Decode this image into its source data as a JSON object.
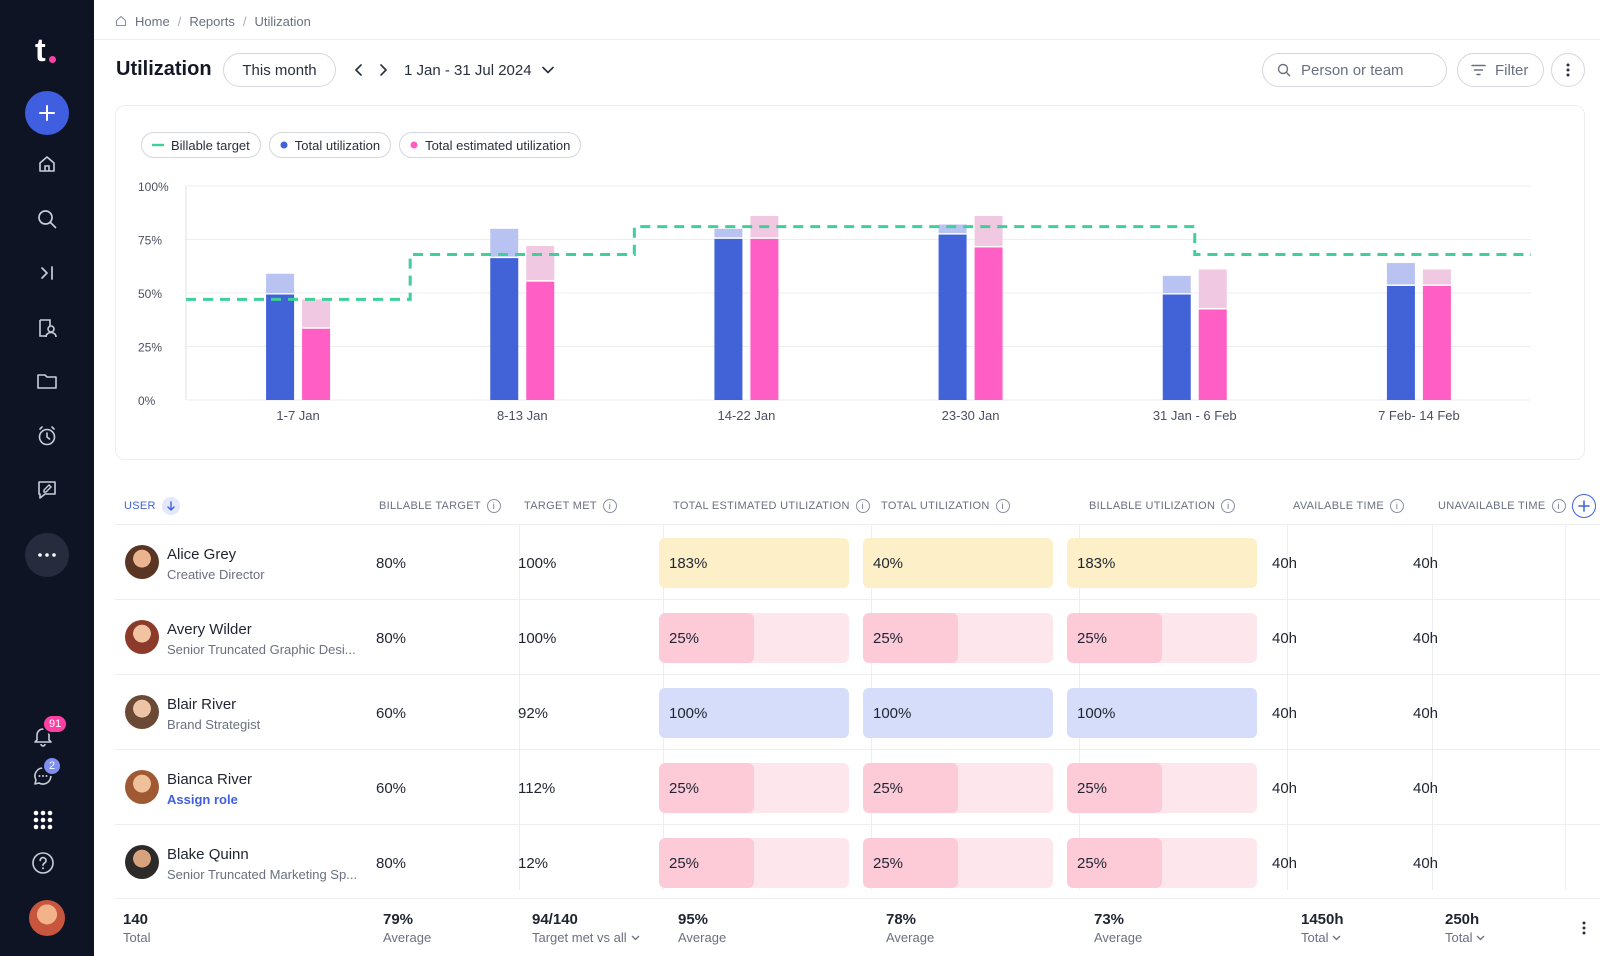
{
  "sidebar": {
    "logo_letter": "t",
    "notifications_count": "91",
    "messages_count": "2",
    "colors": {
      "bg": "#0f1424",
      "accent": "#3f5fe0",
      "badge_pink": "#ff3fa4",
      "badge_blue": "#7f8ff0"
    },
    "icons": [
      "plus-icon",
      "home-icon",
      "search-icon",
      "collapse-icon",
      "people-icon",
      "folder-icon",
      "timer-icon",
      "report-icon",
      "more-icon",
      "bell-icon",
      "chat-icon",
      "apps-grid-icon",
      "help-icon"
    ]
  },
  "breadcrumb": {
    "items": [
      "Home",
      "Reports",
      "Utilization"
    ]
  },
  "header": {
    "title": "Utilization",
    "period_button": "This month",
    "date_range": "1 Jan - 31 Jul 2024",
    "search_placeholder": "Person or team",
    "filter_label": "Filter"
  },
  "chart_data": {
    "type": "bar",
    "legend": [
      "Billable target",
      "Total utilization",
      "Total estimated utilization"
    ],
    "categories": [
      "1-7 Jan",
      "8-13 Jan",
      "14-22 Jan",
      "23-30 Jan",
      "31 Jan - 6 Feb",
      "7 Feb- 14 Feb"
    ],
    "yticks": [
      "100%",
      "75%",
      "50%",
      "25%",
      "0%"
    ],
    "ylim": [
      0,
      100
    ],
    "series": [
      {
        "name": "Total utilization",
        "values": [
          50,
          67,
          76,
          78,
          50,
          54
        ],
        "stack_top": [
          59,
          80,
          80,
          82,
          58,
          64
        ],
        "color": "#4263d8",
        "light_color": "#b9c3f2"
      },
      {
        "name": "Total estimated utilization",
        "values": [
          34,
          56,
          76,
          72,
          43,
          54
        ],
        "stack_top": [
          47,
          72,
          86,
          86,
          61,
          61
        ],
        "color": "#ff5ec4",
        "light_color": "#f0c8e2"
      }
    ],
    "billable_target": [
      47,
      47,
      68,
      68,
      81,
      81,
      81,
      81,
      81,
      68,
      68,
      68
    ],
    "colors": {
      "target": "#3fcf9a"
    },
    "grid": true
  },
  "table": {
    "headers": {
      "user": "USER",
      "billable_target": "BILLABLE TARGET",
      "target_met": "TARGET MET",
      "total_estimated": "TOTAL ESTIMATED UTILIZATION",
      "total_utilization": "TOTAL UTILIZATION",
      "billable_utilization": "BILLABLE UTILIZATION",
      "available_time": "AVAILABLE TIME",
      "unavailable_time": "UNAVAILABLE TIME"
    },
    "rows": [
      {
        "name": "Alice Grey",
        "role": "Creative Director",
        "billable_target": "80%",
        "target_met": "100%",
        "total_estimated": "183%",
        "total_utilization": "40%",
        "billable_utilization": "183%",
        "available": "40h",
        "unavailable": "40h",
        "status": "over"
      },
      {
        "name": "Avery Wilder",
        "role": "Senior Truncated Graphic Desi...",
        "billable_target": "80%",
        "target_met": "100%",
        "total_estimated": "25%",
        "total_utilization": "25%",
        "billable_utilization": "25%",
        "available": "40h",
        "unavailable": "40h",
        "status": "under"
      },
      {
        "name": "Blair River",
        "role": "Brand Strategist",
        "billable_target": "60%",
        "target_met": "92%",
        "total_estimated": "100%",
        "total_utilization": "100%",
        "billable_utilization": "100%",
        "available": "40h",
        "unavailable": "40h",
        "status": "full"
      },
      {
        "name": "Bianca River",
        "role": "Assign role",
        "billable_target": "60%",
        "target_met": "112%",
        "total_estimated": "25%",
        "total_utilization": "25%",
        "billable_utilization": "25%",
        "available": "40h",
        "unavailable": "40h",
        "status": "under"
      },
      {
        "name": "Blake Quinn",
        "role": "Senior Truncated Marketing Sp...",
        "billable_target": "80%",
        "target_met": "12%",
        "total_estimated": "25%",
        "total_utilization": "25%",
        "billable_utilization": "25%",
        "available": "40h",
        "unavailable": "40h",
        "status": "under"
      }
    ],
    "status_colors": {
      "over": "#fdf0c9",
      "full": "#d6ddfa",
      "under_fill": "#fdcad8",
      "under_bg": "#fde7ec"
    }
  },
  "footer": {
    "total_value": "140",
    "total_label": "Total",
    "billable_value": "79%",
    "billable_label": "Average",
    "met_value": "94/140",
    "met_label": "Target met vs all",
    "est_value": "95%",
    "est_label": "Average",
    "util_value": "78%",
    "util_label": "Average",
    "bill_util_value": "73%",
    "bill_util_label": "Average",
    "avail_value": "1450h",
    "avail_label": "Total",
    "unavail_value": "250h",
    "unavail_label": "Total"
  }
}
